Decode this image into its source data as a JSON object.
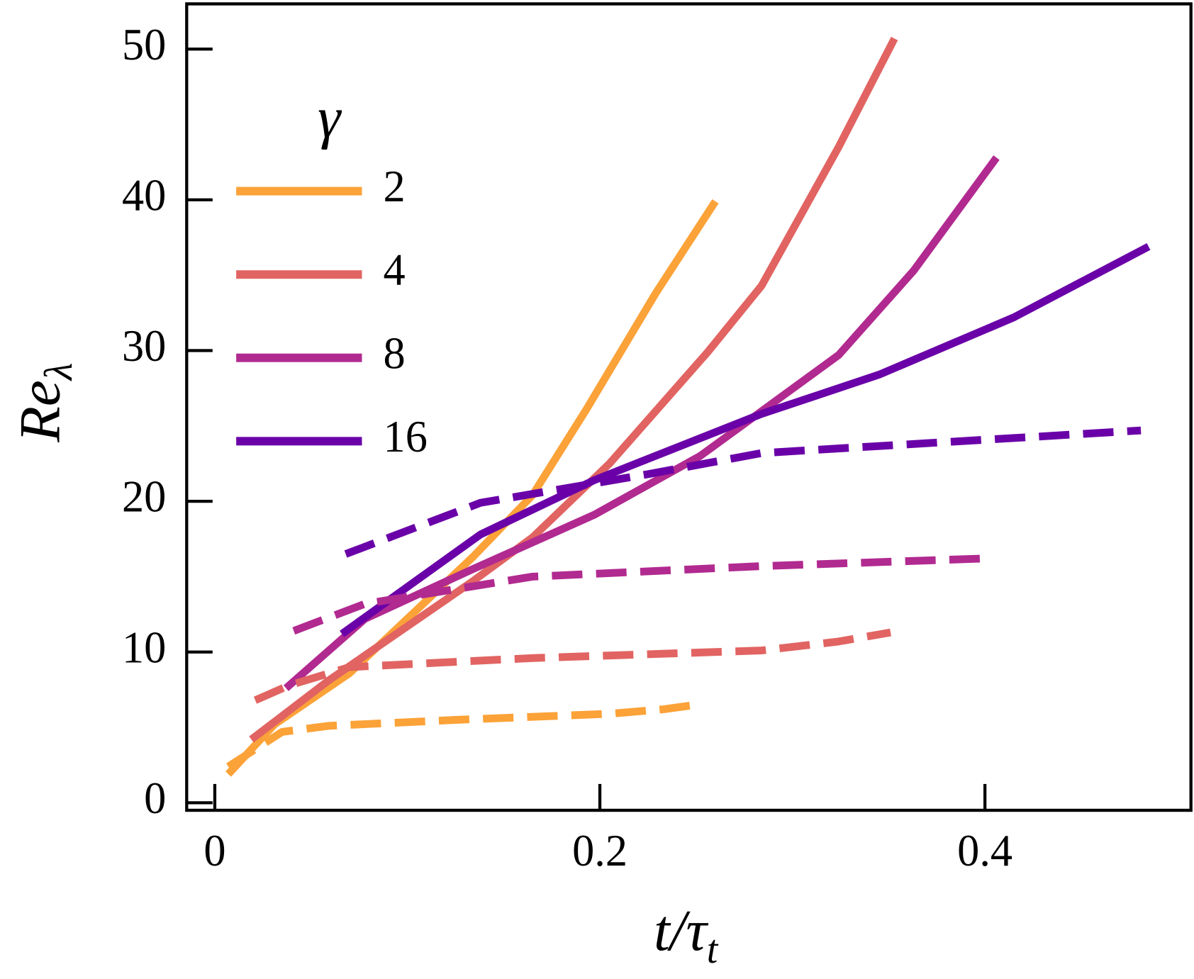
{
  "chart_data": {
    "type": "line",
    "xlabel": [
      "t/τ",
      "t"
    ],
    "ylabel": [
      "Re",
      "λ"
    ],
    "legend_title": "γ",
    "xlim": [
      -0.0146,
      0.507
    ],
    "ylim": [
      -0.5,
      53.0
    ],
    "xticks": [
      0,
      0.2,
      0.4
    ],
    "yticks": [
      0,
      10,
      20,
      30,
      40,
      50
    ],
    "legend": "upper left",
    "series": [
      {
        "name": "2",
        "color": "#fba238",
        "linestyle": "solid",
        "x": [
          0.007,
          0.031,
          0.07,
          0.134,
          0.165,
          0.193,
          0.229,
          0.26
        ],
        "values": [
          1.9,
          5.2,
          8.6,
          16.3,
          20.4,
          26.1,
          33.8,
          39.9
        ]
      },
      {
        "name": "4",
        "color": "#e16462",
        "linestyle": "solid",
        "x": [
          0.019,
          0.059,
          0.134,
          0.165,
          0.205,
          0.256,
          0.284,
          0.324,
          0.353
        ],
        "values": [
          4.2,
          8.1,
          14.7,
          17.6,
          22.5,
          29.9,
          34.3,
          43.5,
          50.7
        ]
      },
      {
        "name": "8",
        "color": "#b12a90",
        "linestyle": "solid",
        "x": [
          0.037,
          0.078,
          0.134,
          0.197,
          0.252,
          0.324,
          0.363,
          0.406
        ],
        "values": [
          7.6,
          12.2,
          15.5,
          19.1,
          23.0,
          29.7,
          35.3,
          42.8
        ]
      },
      {
        "name": "16",
        "color": "#6a00a8",
        "linestyle": "solid",
        "x": [
          0.066,
          0.138,
          0.197,
          0.284,
          0.345,
          0.415,
          0.485
        ],
        "values": [
          11.2,
          17.8,
          21.4,
          25.8,
          28.4,
          32.2,
          36.9
        ]
      },
      {
        "color": "#fba238",
        "linestyle": "dashed",
        "x": [
          0.007,
          0.035,
          0.059,
          0.126,
          0.205,
          0.233,
          0.25
        ],
        "values": [
          2.4,
          4.7,
          5.1,
          5.5,
          5.9,
          6.2,
          6.5
        ]
      },
      {
        "color": "#e16462",
        "linestyle": "dashed",
        "x": [
          0.021,
          0.039,
          0.07,
          0.165,
          0.284,
          0.324,
          0.351
        ],
        "values": [
          6.8,
          7.8,
          9.0,
          9.6,
          10.1,
          10.7,
          11.3
        ]
      },
      {
        "color": "#b12a90",
        "linestyle": "dashed",
        "x": [
          0.041,
          0.078,
          0.165,
          0.284,
          0.399
        ],
        "values": [
          11.4,
          13.2,
          15.0,
          15.7,
          16.2
        ]
      },
      {
        "color": "#6a00a8",
        "linestyle": "dashed",
        "x": [
          0.068,
          0.138,
          0.225,
          0.284,
          0.363,
          0.481
        ],
        "values": [
          16.5,
          19.9,
          21.8,
          23.2,
          23.8,
          24.7
        ]
      }
    ]
  }
}
